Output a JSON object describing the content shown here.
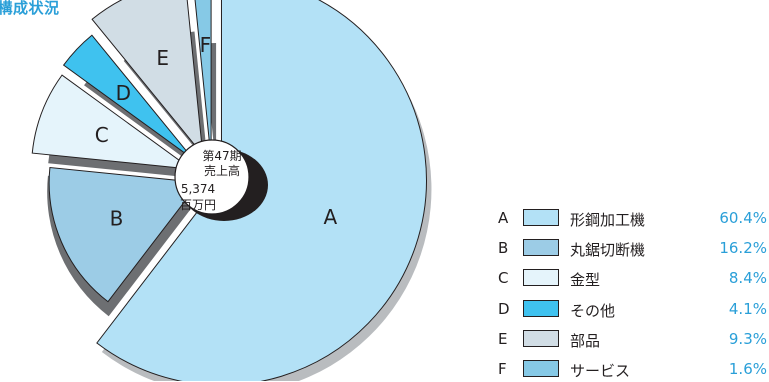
{
  "title": "高構成状況",
  "chart_data": {
    "type": "pie",
    "center_label": [
      "第47期",
      "売上高",
      "5,374",
      "百万円"
    ],
    "slices": [
      {
        "label": "A",
        "name": "形鋼加工機",
        "value": 60.4,
        "pct_text": "60.4%",
        "color": "#b3e1f6"
      },
      {
        "label": "B",
        "name": "丸鋸切断機",
        "value": 16.2,
        "pct_text": "16.2%",
        "color": "#9ccce6"
      },
      {
        "label": "C",
        "name": "金型",
        "value": 8.4,
        "pct_text": "8.4%",
        "color": "#e5f4fb"
      },
      {
        "label": "D",
        "name": "その他",
        "value": 4.1,
        "pct_text": "4.1%",
        "color": "#3fc2ef"
      },
      {
        "label": "E",
        "name": "部品",
        "value": 9.3,
        "pct_text": "9.3%",
        "color": "#d1dde5"
      },
      {
        "label": "F",
        "name": "サービス",
        "value": 1.6,
        "pct_text": "1.6%",
        "color": "#86c9e6"
      }
    ]
  }
}
